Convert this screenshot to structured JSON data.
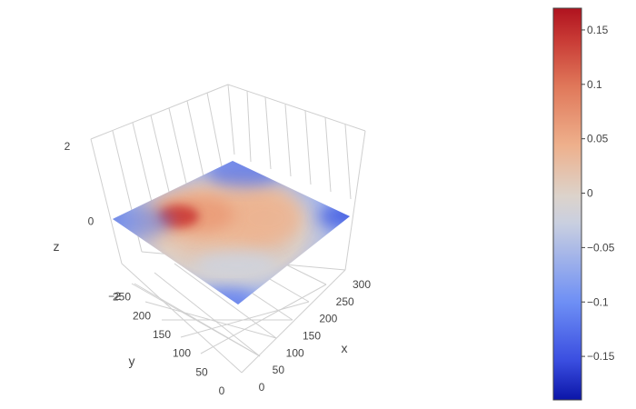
{
  "chart_data": {
    "type": "surface3d",
    "title": "",
    "axes": {
      "x": {
        "label": "x",
        "range": [
          0,
          300
        ],
        "ticks": [
          0,
          50,
          100,
          150,
          200,
          250,
          300
        ]
      },
      "y": {
        "label": "y",
        "range": [
          0,
          300
        ],
        "ticks": [
          0,
          50,
          100,
          150,
          200,
          250
        ]
      },
      "z": {
        "label": "z",
        "range": [
          -2,
          2
        ],
        "ticks": [
          -2,
          0,
          2
        ]
      }
    },
    "surface": {
      "z_level": 0,
      "color_value_range": [
        -0.19,
        0.17
      ],
      "hotspots": [
        {
          "x": 60,
          "y": 250,
          "value": 0.17
        },
        {
          "x": 120,
          "y": 190,
          "value": 0.07
        },
        {
          "x": 200,
          "y": 150,
          "value": 0.07
        },
        {
          "x": 230,
          "y": 60,
          "value": 0.03
        }
      ],
      "cold_edges_value": -0.18
    },
    "colorbar": {
      "colorscale": "coolwarm",
      "ticks": [
        {
          "value": 0.15,
          "label": "0.15"
        },
        {
          "value": 0.1,
          "label": "0.1"
        },
        {
          "value": 0.05,
          "label": "0.05"
        },
        {
          "value": 0,
          "label": "0"
        },
        {
          "value": -0.05,
          "label": "−0.05"
        },
        {
          "value": -0.1,
          "label": "−0.1"
        },
        {
          "value": -0.15,
          "label": "−0.15"
        }
      ]
    },
    "grid": true
  }
}
